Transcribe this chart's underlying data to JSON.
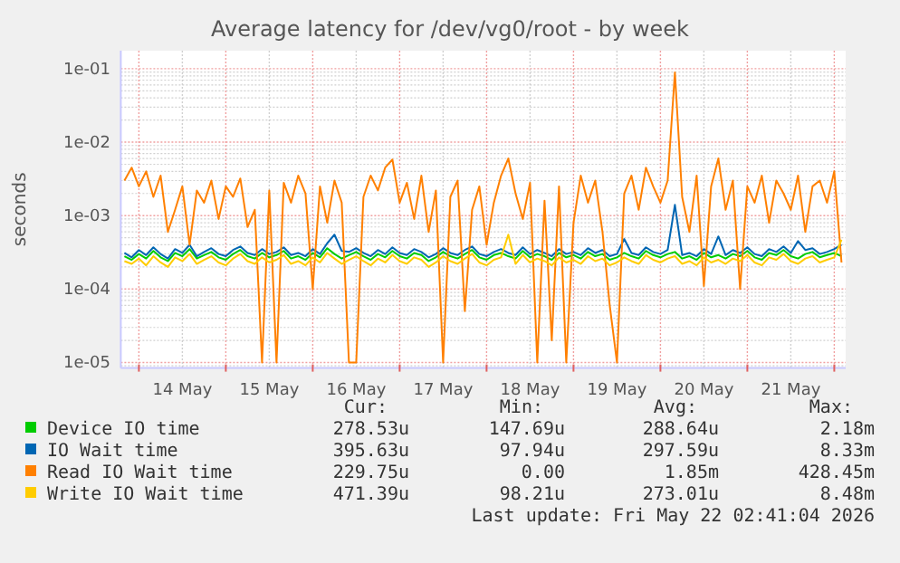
{
  "chart_data": {
    "type": "line",
    "title": "Average latency for /dev/vg0/root - by week",
    "ylabel": "seconds",
    "log": "y",
    "grid": true,
    "legend": "bottom",
    "marker": "none",
    "line_style": "solid",
    "xlim": [
      "2026-05-13T19:00",
      "2026-05-22T03:09"
    ],
    "xticks": [
      {
        "value": "2026-05-14T00:00",
        "label": null
      },
      {
        "value": "2026-05-14T12:00",
        "label": "14 May"
      },
      {
        "value": "2026-05-15T00:00",
        "label": null
      },
      {
        "value": "2026-05-15T12:00",
        "label": "15 May"
      },
      {
        "value": "2026-05-16T00:00",
        "label": null
      },
      {
        "value": "2026-05-16T12:00",
        "label": "16 May"
      },
      {
        "value": "2026-05-17T00:00",
        "label": null
      },
      {
        "value": "2026-05-17T12:00",
        "label": "17 May"
      },
      {
        "value": "2026-05-18T00:00",
        "label": null
      },
      {
        "value": "2026-05-18T12:00",
        "label": "18 May"
      },
      {
        "value": "2026-05-19T00:00",
        "label": null
      },
      {
        "value": "2026-05-19T12:00",
        "label": "19 May"
      },
      {
        "value": "2026-05-20T00:00",
        "label": null
      },
      {
        "value": "2026-05-20T12:00",
        "label": "20 May"
      },
      {
        "value": "2026-05-21T00:00",
        "label": null
      },
      {
        "value": "2026-05-21T12:00",
        "label": "21 May"
      },
      {
        "value": "2026-05-22T00:00",
        "label": null
      }
    ],
    "ylim": [
      8.4e-06,
      0.176
    ],
    "yticks": [
      {
        "value": 1e-05,
        "label": "1e-05"
      },
      {
        "value": 0.0001,
        "label": "1e-04"
      },
      {
        "value": 0.001,
        "label": "1e-03"
      },
      {
        "value": 0.01,
        "label": "1e-02"
      },
      {
        "value": 0.1,
        "label": "1e-01"
      }
    ],
    "x": [
      "2026-05-13T20:00",
      "2026-05-13T22:00",
      "2026-05-14T00:00",
      "2026-05-14T02:00",
      "2026-05-14T04:00",
      "2026-05-14T06:00",
      "2026-05-14T08:00",
      "2026-05-14T10:00",
      "2026-05-14T12:00",
      "2026-05-14T14:00",
      "2026-05-14T16:00",
      "2026-05-14T18:00",
      "2026-05-14T20:00",
      "2026-05-14T22:00",
      "2026-05-15T00:00",
      "2026-05-15T02:00",
      "2026-05-15T04:00",
      "2026-05-15T06:00",
      "2026-05-15T08:00",
      "2026-05-15T10:00",
      "2026-05-15T12:00",
      "2026-05-15T14:00",
      "2026-05-15T16:00",
      "2026-05-15T18:00",
      "2026-05-15T20:00",
      "2026-05-15T22:00",
      "2026-05-16T00:00",
      "2026-05-16T02:00",
      "2026-05-16T04:00",
      "2026-05-16T06:00",
      "2026-05-16T08:00",
      "2026-05-16T10:00",
      "2026-05-16T12:00",
      "2026-05-16T14:00",
      "2026-05-16T16:00",
      "2026-05-16T18:00",
      "2026-05-16T20:00",
      "2026-05-16T22:00",
      "2026-05-17T00:00",
      "2026-05-17T02:00",
      "2026-05-17T04:00",
      "2026-05-17T06:00",
      "2026-05-17T08:00",
      "2026-05-17T10:00",
      "2026-05-17T12:00",
      "2026-05-17T14:00",
      "2026-05-17T16:00",
      "2026-05-17T18:00",
      "2026-05-17T20:00",
      "2026-05-17T22:00",
      "2026-05-18T00:00",
      "2026-05-18T02:00",
      "2026-05-18T04:00",
      "2026-05-18T06:00",
      "2026-05-18T08:00",
      "2026-05-18T10:00",
      "2026-05-18T12:00",
      "2026-05-18T14:00",
      "2026-05-18T16:00",
      "2026-05-18T18:00",
      "2026-05-18T20:00",
      "2026-05-18T22:00",
      "2026-05-19T00:00",
      "2026-05-19T02:00",
      "2026-05-19T04:00",
      "2026-05-19T06:00",
      "2026-05-19T08:00",
      "2026-05-19T10:00",
      "2026-05-19T12:00",
      "2026-05-19T14:00",
      "2026-05-19T16:00",
      "2026-05-19T18:00",
      "2026-05-19T20:00",
      "2026-05-19T22:00",
      "2026-05-20T00:00",
      "2026-05-20T02:00",
      "2026-05-20T04:00",
      "2026-05-20T06:00",
      "2026-05-20T08:00",
      "2026-05-20T10:00",
      "2026-05-20T12:00",
      "2026-05-20T14:00",
      "2026-05-20T16:00",
      "2026-05-20T18:00",
      "2026-05-20T20:00",
      "2026-05-20T22:00",
      "2026-05-21T00:00",
      "2026-05-21T02:00",
      "2026-05-21T04:00",
      "2026-05-21T06:00",
      "2026-05-21T08:00",
      "2026-05-21T10:00",
      "2026-05-21T12:00",
      "2026-05-21T14:00",
      "2026-05-21T16:00",
      "2026-05-21T18:00",
      "2026-05-21T20:00",
      "2026-05-21T22:00",
      "2026-05-22T00:00",
      "2026-05-22T02:00"
    ],
    "series": [
      {
        "name": "Device IO time",
        "color": "#00cc00",
        "values": [
          0.00028,
          0.00025,
          0.0003,
          0.00026,
          0.00033,
          0.00027,
          0.00024,
          0.00031,
          0.00028,
          0.00035,
          0.00026,
          0.00029,
          0.00032,
          0.00027,
          0.00025,
          0.0003,
          0.00034,
          0.00028,
          0.00026,
          0.00031,
          0.00027,
          0.00029,
          0.00033,
          0.00026,
          0.00028,
          0.00025,
          0.00031,
          0.00027,
          0.00036,
          0.0003,
          0.00026,
          0.00029,
          0.00032,
          0.00028,
          0.00025,
          0.0003,
          0.00027,
          0.00033,
          0.00028,
          0.00026,
          0.00031,
          0.00029,
          0.00024,
          0.00027,
          0.00032,
          0.00028,
          0.00026,
          0.0003,
          0.00034,
          0.00027,
          0.00025,
          0.00029,
          0.00031,
          0.00028,
          0.00026,
          0.00033,
          0.00027,
          0.0003,
          0.00028,
          0.00025,
          0.00031,
          0.00027,
          0.00029,
          0.00026,
          0.00032,
          0.00028,
          0.0003,
          0.00025,
          0.00027,
          0.00031,
          0.00028,
          0.00026,
          0.00033,
          0.00029,
          0.00027,
          0.0003,
          0.00032,
          0.00026,
          0.00028,
          0.00025,
          0.00031,
          0.00027,
          0.00029,
          0.00026,
          0.0003,
          0.00028,
          0.00033,
          0.00027,
          0.00025,
          0.00031,
          0.00029,
          0.00034,
          0.00028,
          0.00026,
          0.0003,
          0.00032,
          0.00027,
          0.00029,
          0.00031,
          0.00028
        ]
      },
      {
        "name": "IO Wait time",
        "color": "#0066b3",
        "values": [
          0.00031,
          0.00027,
          0.00034,
          0.00029,
          0.00037,
          0.0003,
          0.00026,
          0.00035,
          0.00031,
          0.0004,
          0.00028,
          0.00032,
          0.00036,
          0.0003,
          0.00028,
          0.00034,
          0.00038,
          0.00031,
          0.00029,
          0.00035,
          0.0003,
          0.00032,
          0.00037,
          0.00029,
          0.00031,
          0.00028,
          0.00035,
          0.0003,
          0.00042,
          0.00055,
          0.00033,
          0.00032,
          0.00036,
          0.00031,
          0.00028,
          0.00034,
          0.0003,
          0.00037,
          0.00031,
          0.00029,
          0.00035,
          0.00032,
          0.00027,
          0.0003,
          0.00036,
          0.00031,
          0.00029,
          0.00034,
          0.00038,
          0.0003,
          0.00028,
          0.00032,
          0.00035,
          0.00031,
          0.00029,
          0.00037,
          0.0003,
          0.00034,
          0.00031,
          0.00028,
          0.00035,
          0.0003,
          0.00032,
          0.00029,
          0.00036,
          0.00031,
          0.00034,
          0.00028,
          0.0003,
          0.00048,
          0.00031,
          0.00029,
          0.00037,
          0.00032,
          0.0003,
          0.00034,
          0.0014,
          0.00029,
          0.00031,
          0.00028,
          0.00035,
          0.0003,
          0.00052,
          0.00029,
          0.00034,
          0.00031,
          0.00037,
          0.0003,
          0.00028,
          0.00035,
          0.00032,
          0.00038,
          0.00031,
          0.00045,
          0.00034,
          0.00036,
          0.0003,
          0.00032,
          0.00035,
          0.0004
        ]
      },
      {
        "name": "Read IO Wait time",
        "color": "#ff8000",
        "values": [
          0.003,
          0.0045,
          0.0025,
          0.004,
          0.0018,
          0.0035,
          0.0006,
          0.0012,
          0.0025,
          0.0004,
          0.0022,
          0.0015,
          0.003,
          0.0009,
          0.0025,
          0.0018,
          0.0032,
          0.0007,
          0.0012,
          1e-05,
          0.0022,
          1e-05,
          0.0028,
          0.0015,
          0.0035,
          0.002,
          0.0001,
          0.0025,
          0.0008,
          0.003,
          0.0015,
          1e-05,
          1e-05,
          0.0018,
          0.0035,
          0.0022,
          0.0045,
          0.0058,
          0.0015,
          0.0028,
          0.0009,
          0.0035,
          0.0006,
          0.0022,
          1e-05,
          0.0018,
          0.003,
          5e-05,
          0.0012,
          0.0025,
          0.0004,
          0.0015,
          0.0035,
          0.006,
          0.002,
          0.0009,
          0.0028,
          1e-05,
          0.0016,
          2e-05,
          0.0025,
          1e-05,
          0.0008,
          0.0035,
          0.0015,
          0.003,
          0.0006,
          6e-05,
          1e-05,
          0.002,
          0.0035,
          0.0012,
          0.0045,
          0.0025,
          0.0015,
          0.003,
          0.089,
          0.0018,
          0.0006,
          0.0035,
          0.00011,
          0.0025,
          0.006,
          0.0012,
          0.003,
          0.0001,
          0.0025,
          0.0015,
          0.0035,
          0.0008,
          0.003,
          0.002,
          0.0012,
          0.0035,
          0.0006,
          0.0025,
          0.003,
          0.0015,
          0.004,
          0.00023
        ]
      },
      {
        "name": "Write IO Wait time",
        "color": "#ffcc00",
        "values": [
          0.00024,
          0.00022,
          0.00026,
          0.00021,
          0.00028,
          0.00023,
          0.0002,
          0.00027,
          0.00024,
          0.0003,
          0.00022,
          0.00025,
          0.00028,
          0.00023,
          0.00021,
          0.00026,
          0.0003,
          0.00024,
          0.00022,
          0.00027,
          0.00023,
          0.00025,
          0.00029,
          0.00022,
          0.00024,
          0.00021,
          0.00027,
          0.00023,
          0.00031,
          0.00026,
          0.00022,
          0.00025,
          0.00028,
          0.00024,
          0.00021,
          0.00026,
          0.00023,
          0.00029,
          0.00024,
          0.00022,
          0.00027,
          0.00025,
          0.0002,
          0.00023,
          0.00028,
          0.00024,
          0.00022,
          0.00026,
          0.0003,
          0.00023,
          0.00021,
          0.00025,
          0.00027,
          0.00055,
          0.00022,
          0.00029,
          0.00023,
          0.00026,
          0.00024,
          0.00021,
          0.00027,
          0.00023,
          0.00025,
          0.00022,
          0.00028,
          0.00024,
          0.00026,
          0.00021,
          0.00023,
          0.00027,
          0.00024,
          0.00022,
          0.00029,
          0.00025,
          0.00023,
          0.00026,
          0.00028,
          0.00022,
          0.00024,
          0.00021,
          0.00027,
          0.00023,
          0.00025,
          0.00022,
          0.00026,
          0.00024,
          0.00029,
          0.00023,
          0.00021,
          0.00027,
          0.00025,
          0.0003,
          0.00024,
          0.00022,
          0.00026,
          0.00028,
          0.00023,
          0.00025,
          0.00027,
          0.00047
        ]
      }
    ],
    "annotations": [
      "Cur:",
      "Min:",
      "Avg:",
      "Max:",
      "278.53u",
      "147.69u",
      "288.64u",
      "2.18m",
      "395.63u",
      "97.94u",
      "297.59u",
      "8.33m",
      "229.75u",
      "0.00",
      "1.85m",
      "428.45m",
      "471.39u",
      "98.21u",
      "273.01u",
      "8.48m",
      "Last update: Fri May 22 02:41:04 2026"
    ]
  }
}
